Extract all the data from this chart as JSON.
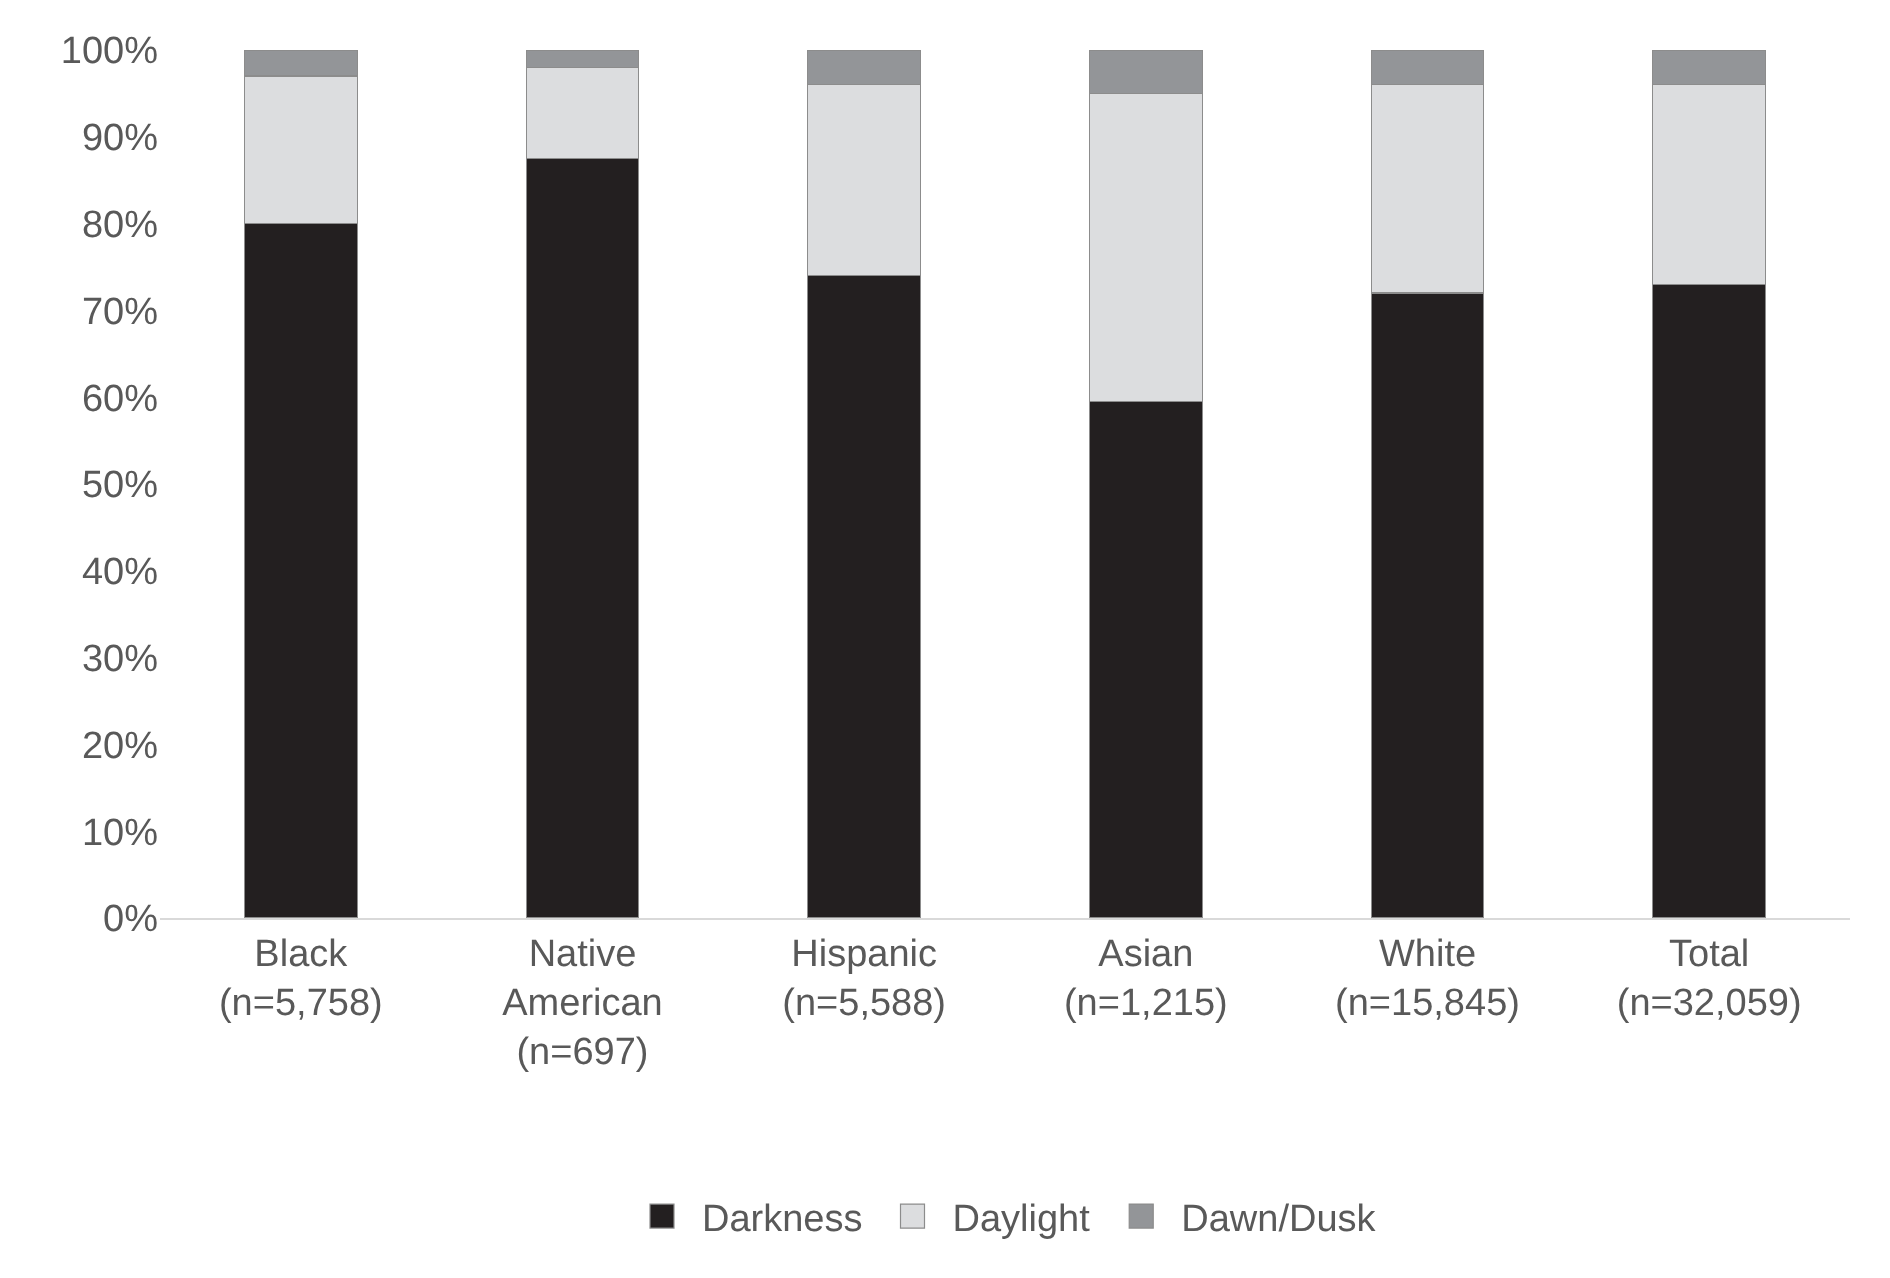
{
  "chart_data": {
    "type": "bar",
    "stacked": true,
    "categories": [
      "Black\n(n=5,758)",
      "Native\nAmerican\n(n=697)",
      "Hispanic\n(n=5,588)",
      "Asian\n(n=1,215)",
      "White\n(n=15,845)",
      "Total\n(n=32,059)"
    ],
    "series": [
      {
        "name": "Darkness",
        "color": "#231f20",
        "values": [
          80,
          87.5,
          74,
          59.5,
          72,
          73
        ]
      },
      {
        "name": "Daylight",
        "color": "#dcdddf",
        "values": [
          17,
          10.5,
          22,
          35.5,
          24,
          23
        ]
      },
      {
        "name": "Dawn/Dusk",
        "color": "#939598",
        "values": [
          3,
          2,
          4,
          5,
          4,
          4
        ]
      }
    ],
    "ylim": [
      0,
      100
    ],
    "yticks": [
      {
        "value": 0,
        "label": "0%"
      },
      {
        "value": 10,
        "label": "10%"
      },
      {
        "value": 20,
        "label": "20%"
      },
      {
        "value": 30,
        "label": "30%"
      },
      {
        "value": 40,
        "label": "40%"
      },
      {
        "value": 50,
        "label": "50%"
      },
      {
        "value": 60,
        "label": "60%"
      },
      {
        "value": 70,
        "label": "70%"
      },
      {
        "value": 80,
        "label": "80%"
      },
      {
        "value": 90,
        "label": "90%"
      },
      {
        "value": 100,
        "label": "100%"
      }
    ],
    "legend": "bottom"
  }
}
